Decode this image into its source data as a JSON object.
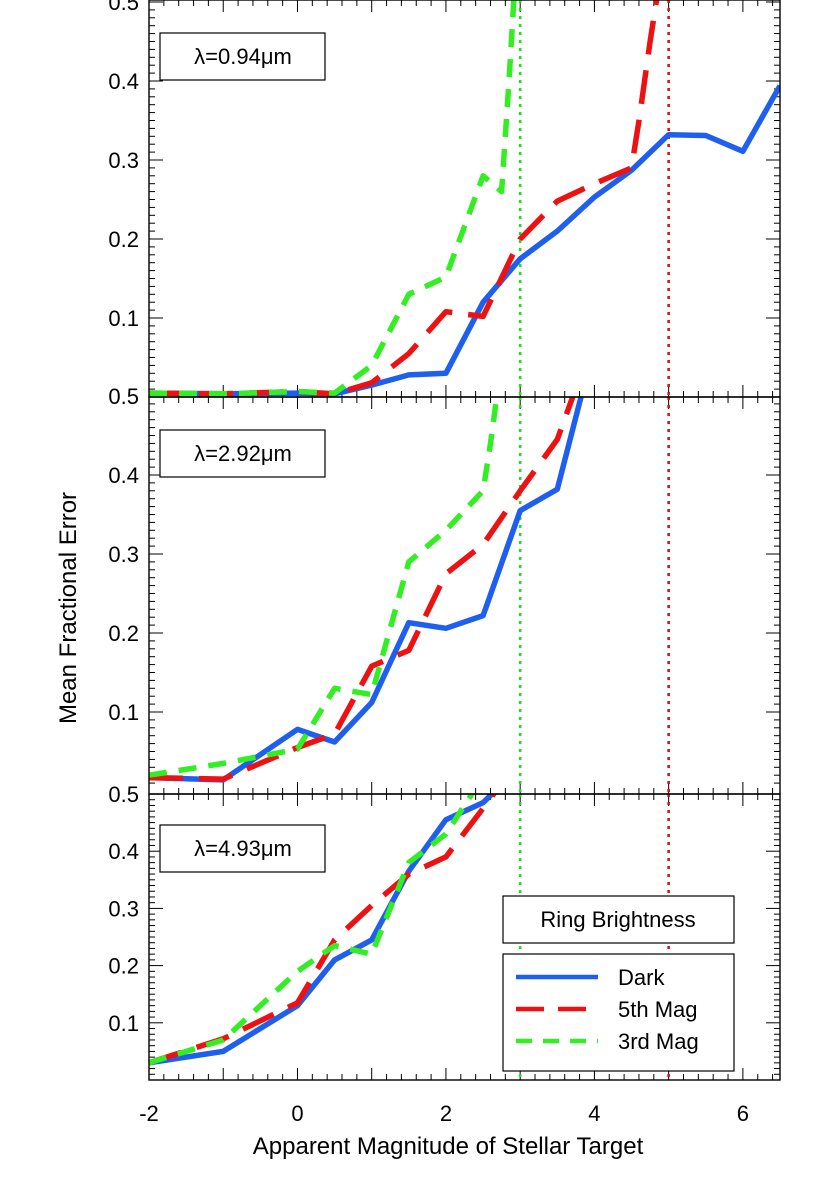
{
  "chart_data": {
    "type": "line",
    "shared_x_axis": {
      "label": "Apparent Magnitude of Stellar Target",
      "range": [
        -2,
        6.5
      ],
      "tick_labels": [
        "-2",
        "0",
        "2",
        "4",
        "6"
      ]
    },
    "shared_y_axis": {
      "label": "Mean Fractional Error"
    },
    "reference_lines": [
      {
        "x": 3,
        "color": "#22dd22",
        "style": "dotted"
      },
      {
        "x": 5,
        "color": "#dd1111",
        "style": "dotted"
      }
    ],
    "series_styles": {
      "Dark": {
        "color": "#1f5ff0",
        "dash": "solid"
      },
      "5th Mag": {
        "color": "#ee1111",
        "dash": "long-dash"
      },
      "3rd Mag": {
        "color": "#33ee22",
        "dash": "dash"
      }
    },
    "legend": {
      "title": "Ring Brightness",
      "entries": [
        "Dark",
        "5th Mag",
        "3rd Mag"
      ],
      "position": "bottom-right of lowest panel"
    },
    "panels": [
      {
        "label": "λ=0.94μm",
        "ylim": [
          0.0,
          0.5
        ],
        "y_tick_labels": [
          "0.1",
          "0.2",
          "0.3",
          "0.4",
          "0.5"
        ],
        "series": [
          {
            "name": "Dark",
            "x": [
              -2,
              -1,
              0,
              0.5,
              1,
              1.5,
              2,
              2.5,
              3,
              3.5,
              4,
              4.5,
              5,
              5.5,
              6,
              6.5
            ],
            "values": [
              0.005,
              0.004,
              0.005,
              0.004,
              0.015,
              0.028,
              0.03,
              0.12,
              0.175,
              0.21,
              0.253,
              0.287,
              0.332,
              0.331,
              0.311,
              0.394
            ]
          },
          {
            "name": "5th Mag",
            "x": [
              -2,
              -1,
              0,
              0.5,
              1,
              1.5,
              2,
              2.5,
              3,
              3.5,
              4,
              4.5,
              4.6,
              4.75,
              4.85
            ],
            "values": [
              0.005,
              0.004,
              0.007,
              0.004,
              0.018,
              0.055,
              0.108,
              0.102,
              0.2,
              0.248,
              0.27,
              0.29,
              0.35,
              0.45,
              0.51
            ]
          },
          {
            "name": "3rd Mag",
            "x": [
              -2,
              -1,
              0,
              0.5,
              1,
              1.5,
              2,
              2.5,
              2.75,
              2.85,
              2.92
            ],
            "values": [
              0.005,
              0.004,
              0.007,
              0.005,
              0.04,
              0.13,
              0.152,
              0.28,
              0.26,
              0.4,
              0.51
            ]
          }
        ]
      },
      {
        "label": "λ=2.92μm",
        "ylim": [
          0.0,
          0.5
        ],
        "y_tick_labels": [
          "0.1",
          "0.2",
          "0.3",
          "0.4",
          "0.5"
        ],
        "series": [
          {
            "name": "Dark",
            "x": [
              -2,
              -1,
              0,
              0.5,
              1,
              1.5,
              2,
              2.5,
              3,
              3.5,
              3.85
            ],
            "values": [
              0.017,
              0.014,
              0.078,
              0.062,
              0.112,
              0.213,
              0.206,
              0.222,
              0.355,
              0.382,
              0.51
            ]
          },
          {
            "name": "5th Mag",
            "x": [
              -2,
              -1,
              0,
              0.5,
              1,
              1.5,
              2,
              2.5,
              3,
              3.5,
              3.75
            ],
            "values": [
              0.017,
              0.015,
              0.055,
              0.072,
              0.158,
              0.178,
              0.275,
              0.312,
              0.38,
              0.445,
              0.51
            ]
          },
          {
            "name": "3rd Mag",
            "x": [
              -2,
              -1,
              0,
              0.5,
              1,
              1.5,
              2,
              2.5,
              2.6,
              2.7
            ],
            "values": [
              0.02,
              0.035,
              0.053,
              0.13,
              0.122,
              0.29,
              0.33,
              0.38,
              0.44,
              0.51
            ]
          }
        ]
      },
      {
        "label": "λ=4.93μm",
        "ylim": [
          0.0,
          0.5
        ],
        "y_tick_labels": [
          "0.1",
          "0.2",
          "0.3",
          "0.4",
          "0.5"
        ],
        "series": [
          {
            "name": "Dark",
            "x": [
              -2,
              -1,
              0,
              0.5,
              1,
              1.5,
              2,
              2.5,
              2.7
            ],
            "values": [
              0.03,
              0.05,
              0.13,
              0.21,
              0.245,
              0.365,
              0.455,
              0.485,
              0.51
            ]
          },
          {
            "name": "5th Mag",
            "x": [
              -2,
              -1,
              0,
              0.5,
              1,
              1.5,
              2,
              2.5,
              2.7
            ],
            "values": [
              0.03,
              0.072,
              0.135,
              0.245,
              0.305,
              0.36,
              0.39,
              0.475,
              0.51
            ]
          },
          {
            "name": "3rd Mag",
            "x": [
              -2,
              -1,
              0,
              0.5,
              1,
              1.5,
              2,
              2.4
            ],
            "values": [
              0.03,
              0.07,
              0.19,
              0.235,
              0.22,
              0.38,
              0.43,
              0.51
            ]
          }
        ]
      }
    ]
  }
}
